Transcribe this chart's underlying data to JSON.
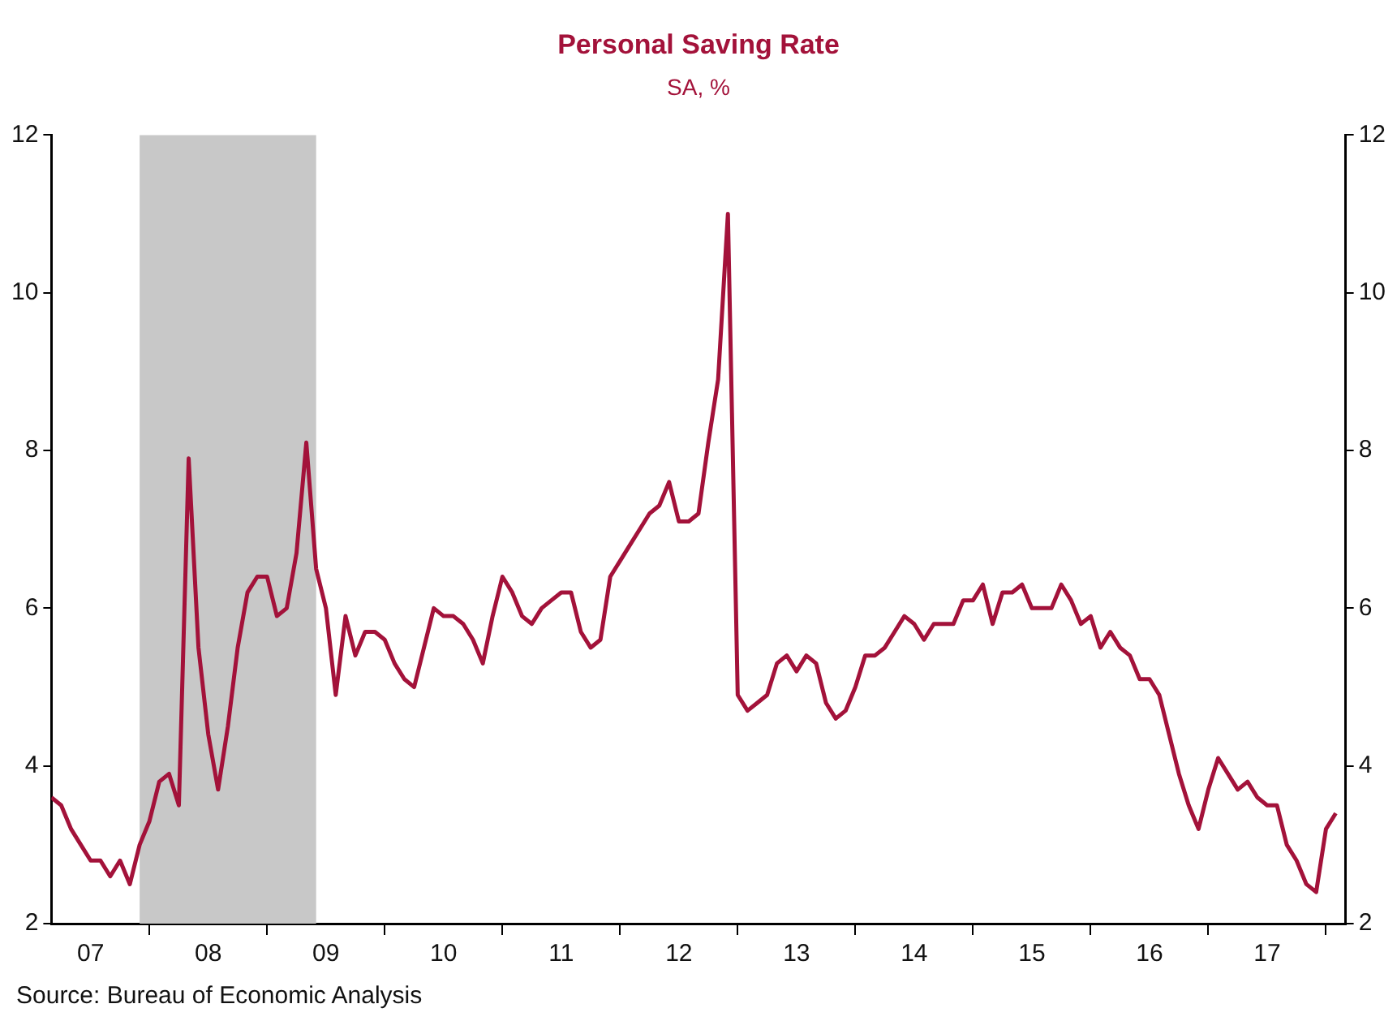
{
  "chart_data": {
    "type": "line",
    "title": "Personal Saving Rate",
    "subtitle": "SA, %",
    "annotations": [
      "Source:  Bureau of Economic Analysis"
    ],
    "x": [
      "2007-03",
      "2007-04",
      "2007-05",
      "2007-06",
      "2007-07",
      "2007-08",
      "2007-09",
      "2007-10",
      "2007-11",
      "2007-12",
      "2008-01",
      "2008-02",
      "2008-03",
      "2008-04",
      "2008-05",
      "2008-06",
      "2008-07",
      "2008-08",
      "2008-09",
      "2008-10",
      "2008-11",
      "2008-12",
      "2009-01",
      "2009-02",
      "2009-03",
      "2009-04",
      "2009-05",
      "2009-06",
      "2009-07",
      "2009-08",
      "2009-09",
      "2009-10",
      "2009-11",
      "2009-12",
      "2010-01",
      "2010-02",
      "2010-03",
      "2010-04",
      "2010-05",
      "2010-06",
      "2010-07",
      "2010-08",
      "2010-09",
      "2010-10",
      "2010-11",
      "2010-12",
      "2011-01",
      "2011-02",
      "2011-03",
      "2011-04",
      "2011-05",
      "2011-06",
      "2011-07",
      "2011-08",
      "2011-09",
      "2011-10",
      "2011-11",
      "2011-12",
      "2012-01",
      "2012-02",
      "2012-03",
      "2012-04",
      "2012-05",
      "2012-06",
      "2012-07",
      "2012-08",
      "2012-09",
      "2012-10",
      "2012-11",
      "2012-12",
      "2013-01",
      "2013-02",
      "2013-03",
      "2013-04",
      "2013-05",
      "2013-06",
      "2013-07",
      "2013-08",
      "2013-09",
      "2013-10",
      "2013-11",
      "2013-12",
      "2014-01",
      "2014-02",
      "2014-03",
      "2014-04",
      "2014-05",
      "2014-06",
      "2014-07",
      "2014-08",
      "2014-09",
      "2014-10",
      "2014-11",
      "2014-12",
      "2015-01",
      "2015-02",
      "2015-03",
      "2015-04",
      "2015-05",
      "2015-06",
      "2015-07",
      "2015-08",
      "2015-09",
      "2015-10",
      "2015-11",
      "2015-12",
      "2016-01",
      "2016-02",
      "2016-03",
      "2016-04",
      "2016-05",
      "2016-06",
      "2016-07",
      "2016-08",
      "2016-09",
      "2016-10",
      "2016-11",
      "2016-12",
      "2017-01",
      "2017-02",
      "2017-03",
      "2017-04",
      "2017-05",
      "2017-06",
      "2017-07",
      "2017-08",
      "2017-09",
      "2017-10",
      "2017-11",
      "2017-12",
      "2018-01",
      "2018-02"
    ],
    "series": [
      {
        "color": "#a3123a",
        "values": [
          3.6,
          3.5,
          3.2,
          3.0,
          2.8,
          2.8,
          2.6,
          2.8,
          2.5,
          3.0,
          3.3,
          3.8,
          3.9,
          3.5,
          7.9,
          5.5,
          4.4,
          3.7,
          4.5,
          5.5,
          6.2,
          6.4,
          6.4,
          5.9,
          6.0,
          6.7,
          8.1,
          6.5,
          6.0,
          4.9,
          5.9,
          5.4,
          5.7,
          5.7,
          5.6,
          5.3,
          5.1,
          5.0,
          5.5,
          6.0,
          5.9,
          5.9,
          5.8,
          5.6,
          5.3,
          5.9,
          6.4,
          6.2,
          5.9,
          5.8,
          6.0,
          6.1,
          6.2,
          6.2,
          5.7,
          5.5,
          5.6,
          6.4,
          6.6,
          6.8,
          7.0,
          7.2,
          7.3,
          7.6,
          7.1,
          7.1,
          7.2,
          8.1,
          8.9,
          11.0,
          4.9,
          4.7,
          4.8,
          4.9,
          5.3,
          5.4,
          5.2,
          5.4,
          5.3,
          4.8,
          4.6,
          4.7,
          5.0,
          5.4,
          5.4,
          5.5,
          5.7,
          5.9,
          5.8,
          5.6,
          5.8,
          5.8,
          5.8,
          6.1,
          6.1,
          6.3,
          5.8,
          6.2,
          6.2,
          6.3,
          6.0,
          6.0,
          6.0,
          6.3,
          6.1,
          5.8,
          5.9,
          5.5,
          5.7,
          5.5,
          5.4,
          5.1,
          5.1,
          4.9,
          4.4,
          3.9,
          3.5,
          3.2,
          3.7,
          4.1,
          3.9,
          3.7,
          3.8,
          3.6,
          3.5,
          3.5,
          3.0,
          2.8,
          2.5,
          2.4,
          3.2,
          3.4
        ]
      }
    ],
    "xlim": [
      "2007-03",
      "2018-03"
    ],
    "xticks": [
      {
        "value": "2008-01",
        "label": null
      },
      {
        "value": "2009-01",
        "label": null
      },
      {
        "value": "2010-01",
        "label": null
      },
      {
        "value": "2011-01",
        "label": null
      },
      {
        "value": "2012-01",
        "label": null
      },
      {
        "value": "2013-01",
        "label": null
      },
      {
        "value": "2014-01",
        "label": null
      },
      {
        "value": "2015-01",
        "label": null
      },
      {
        "value": "2016-01",
        "label": null
      },
      {
        "value": "2017-01",
        "label": null
      },
      {
        "value": "2018-01",
        "label": null
      },
      {
        "value": "2007-07",
        "label": "07"
      },
      {
        "value": "2008-07",
        "label": "08"
      },
      {
        "value": "2009-07",
        "label": "09"
      },
      {
        "value": "2010-07",
        "label": "10"
      },
      {
        "value": "2011-07",
        "label": "11"
      },
      {
        "value": "2012-07",
        "label": "12"
      },
      {
        "value": "2013-07",
        "label": "13"
      },
      {
        "value": "2014-07",
        "label": "14"
      },
      {
        "value": "2015-07",
        "label": "15"
      },
      {
        "value": "2016-07",
        "label": "16"
      },
      {
        "value": "2017-07",
        "label": "17"
      }
    ],
    "ylim": [
      2,
      12
    ],
    "yticks": [
      2,
      4,
      6,
      8,
      10,
      12
    ],
    "y2lim": [
      2,
      12
    ],
    "y2ticks": [
      2,
      4,
      6,
      8,
      10,
      12
    ],
    "bands": [
      {
        "axis": "x",
        "from": "2007-12",
        "to": "2009-06",
        "color": "#c8c8c8"
      }
    ],
    "grid": false,
    "legend": false,
    "marker": "none",
    "line_style": "solid"
  }
}
